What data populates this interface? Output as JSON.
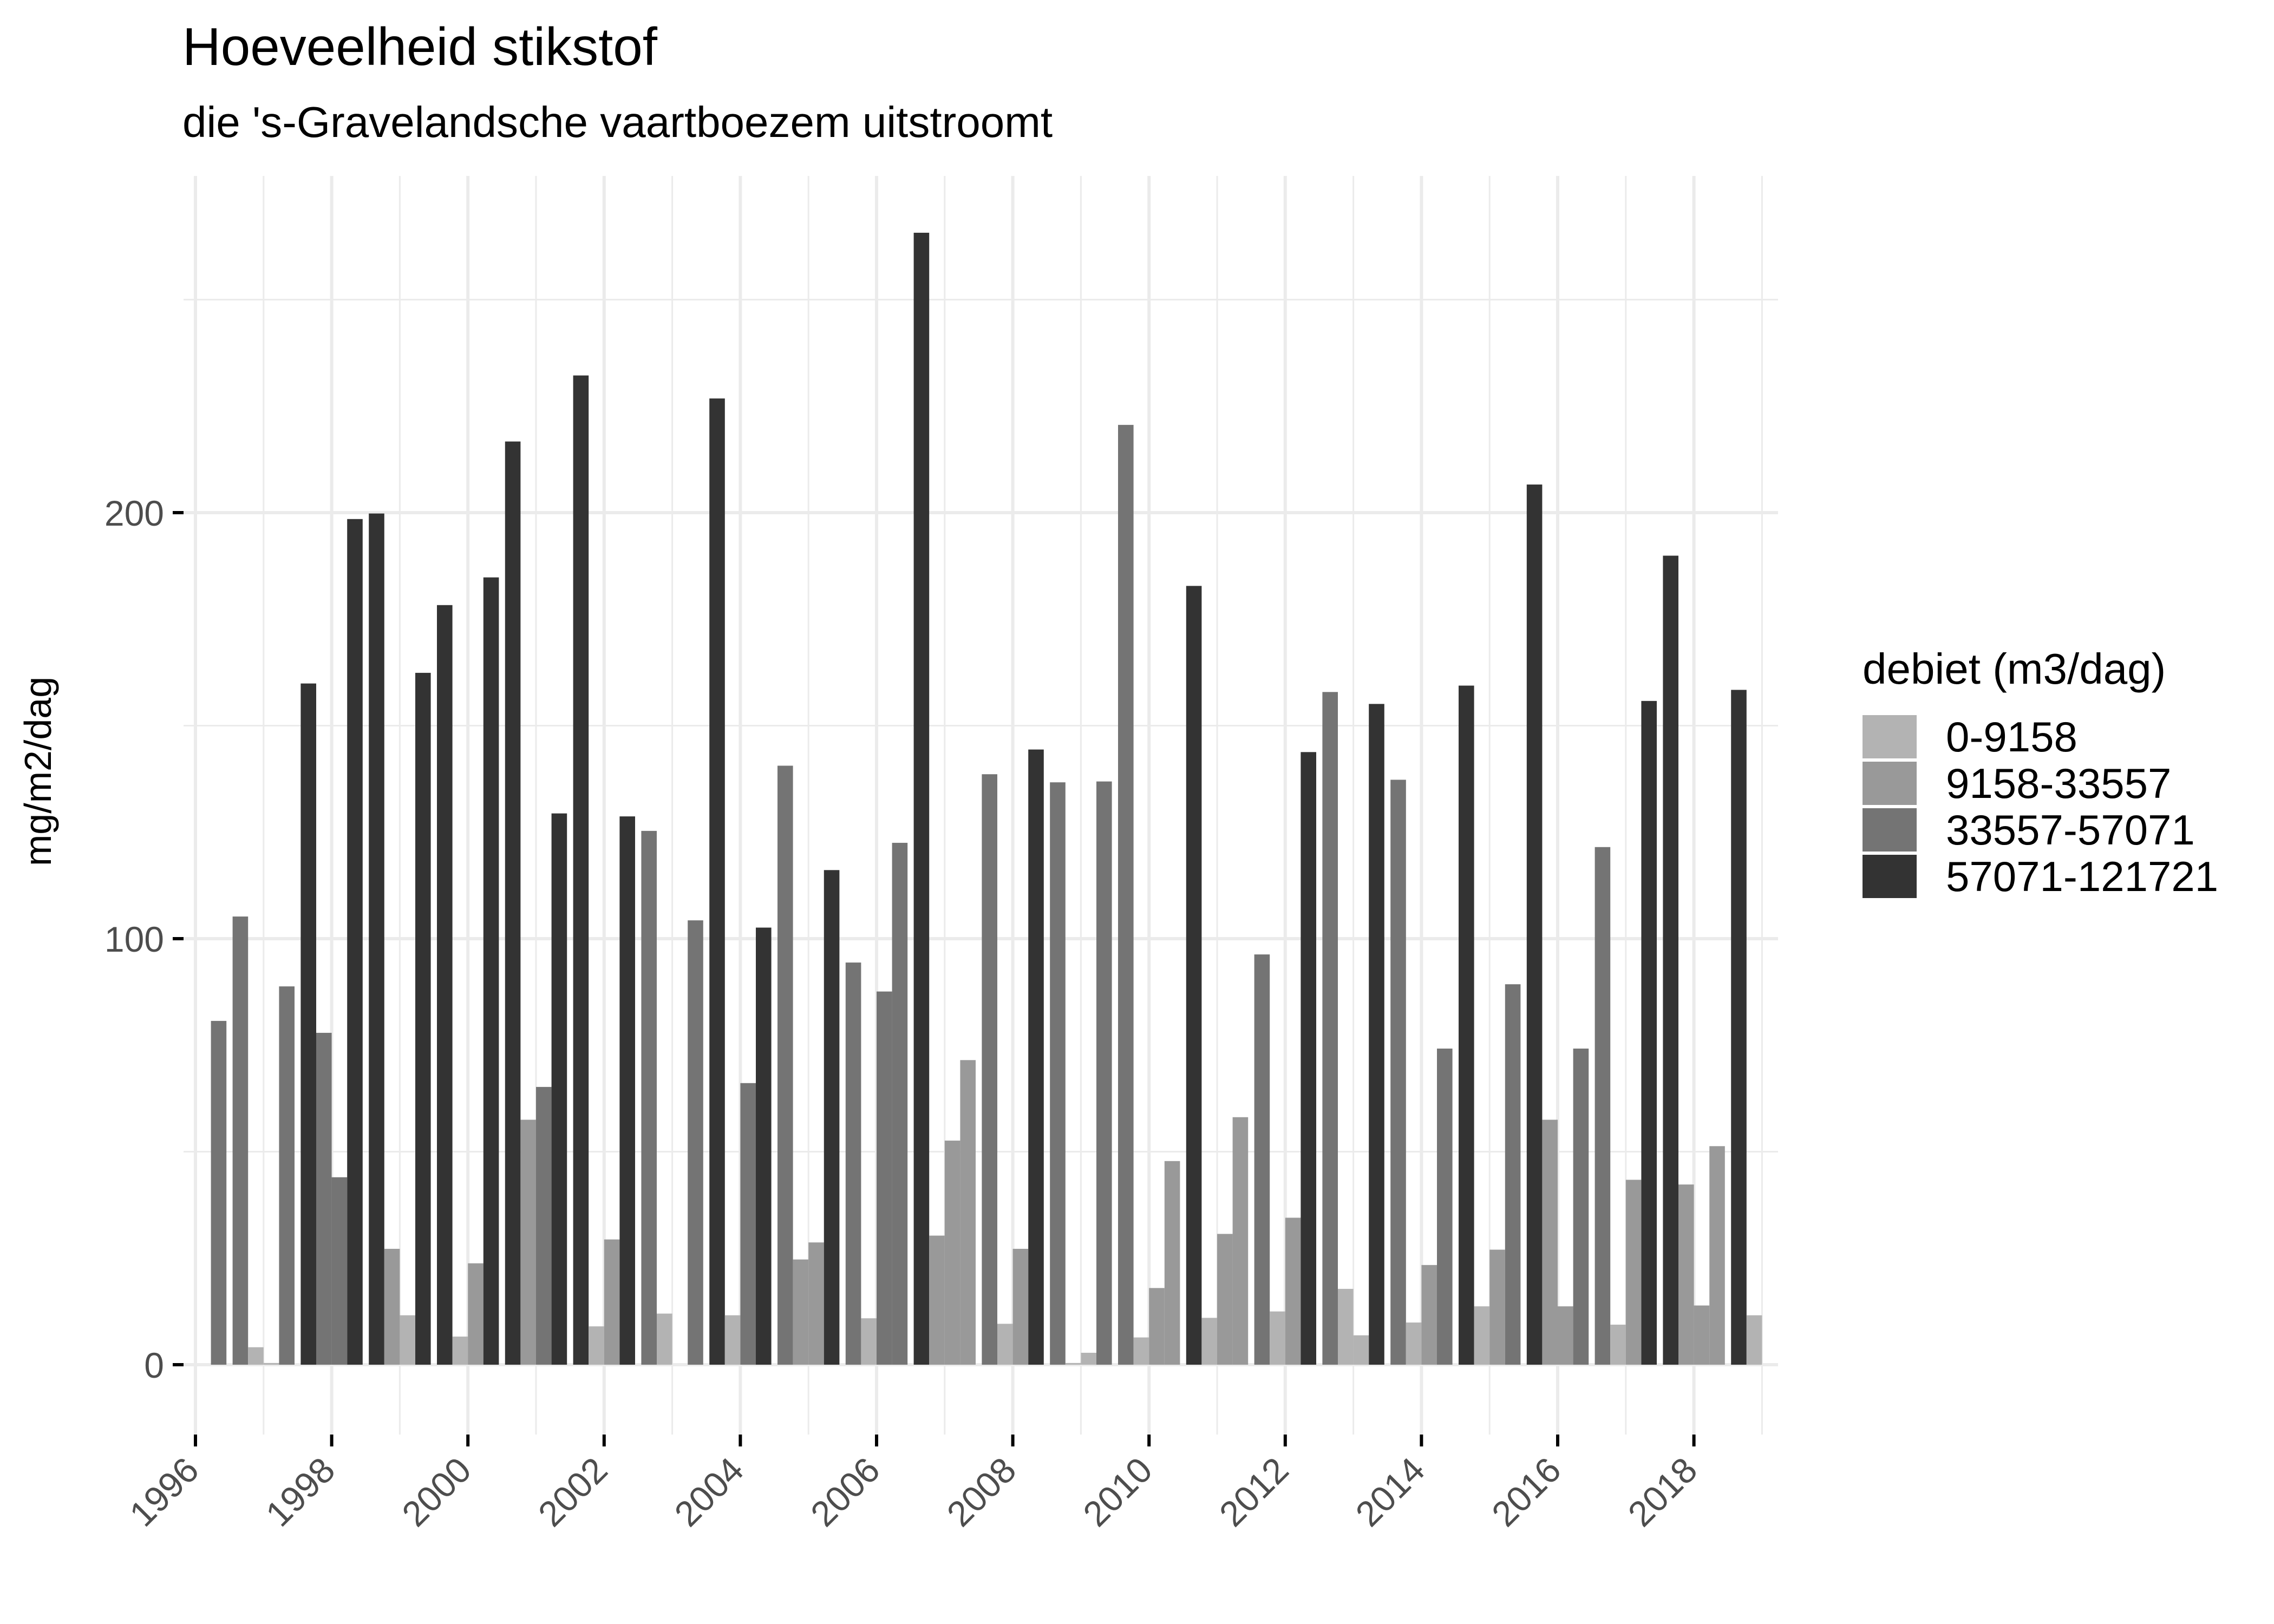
{
  "title": "Hoeveelheid stikstof",
  "subtitle": "die 's-Gravelandsche vaartboezem uitstroomt",
  "legend": {
    "title": "debiet (m3/dag)",
    "items": [
      {
        "label": "0-9158",
        "color": "#B3B3B3"
      },
      {
        "label": "9158-33557",
        "color": "#999999"
      },
      {
        "label": "33557-57071",
        "color": "#747474"
      },
      {
        "label": "57071-121721",
        "color": "#333333"
      }
    ]
  },
  "chart_data": {
    "type": "bar",
    "title": "Hoeveelheid stikstof",
    "subtitle": "die 's-Gravelandsche vaartboezem uitstroomt",
    "xlabel": "",
    "ylabel": "mg/m2/dag",
    "ylim": [
      0,
      270
    ],
    "yticks": [
      0,
      100,
      200
    ],
    "ygrid_minor": [
      50,
      150,
      250
    ],
    "xticks": [
      "1996",
      "1998",
      "2000",
      "2002",
      "2004",
      "2006",
      "2008",
      "2010",
      "2012",
      "2014",
      "2016",
      "2018"
    ],
    "xlim": [
      1995.8,
      2019.2
    ],
    "grid": true,
    "legend_position": "right",
    "legend_title": "debiet (m3/dag)",
    "note": "Per year, four dodged bars (quarters) centred on 1 January; each bar is filled by discharge class.",
    "classes": [
      "0-9158",
      "9158-33557",
      "33557-57071",
      "57071-121721"
    ],
    "groups": [
      {
        "year": 1996,
        "bars": [
          null,
          null,
          null,
          {
            "value": 80.7,
            "class": "33557-57071"
          }
        ]
      },
      {
        "year": 1997,
        "bars": [
          {
            "value": 105.2,
            "class": "33557-57071"
          },
          {
            "value": 4.1,
            "class": "0-9158"
          },
          {
            "value": 0.4,
            "class": "0-9158"
          },
          {
            "value": 88.8,
            "class": "33557-57071"
          }
        ]
      },
      {
        "year": 1998,
        "bars": [
          {
            "value": 159.9,
            "class": "57071-121721"
          },
          {
            "value": 77.9,
            "class": "33557-57071"
          },
          {
            "value": 44.0,
            "class": "33557-57071"
          },
          {
            "value": 198.5,
            "class": "57071-121721"
          }
        ]
      },
      {
        "year": 1999,
        "bars": [
          {
            "value": 199.8,
            "class": "57071-121721"
          },
          {
            "value": 27.2,
            "class": "9158-33557"
          },
          {
            "value": 11.6,
            "class": "0-9158"
          },
          {
            "value": 162.4,
            "class": "57071-121721"
          }
        ]
      },
      {
        "year": 2000,
        "bars": [
          {
            "value": 178.3,
            "class": "57071-121721"
          },
          {
            "value": 6.6,
            "class": "0-9158"
          },
          {
            "value": 23.8,
            "class": "9158-33557"
          },
          {
            "value": 184.8,
            "class": "57071-121721"
          }
        ]
      },
      {
        "year": 2001,
        "bars": [
          {
            "value": 216.7,
            "class": "57071-121721"
          },
          {
            "value": 57.5,
            "class": "9158-33557"
          },
          {
            "value": 65.2,
            "class": "33557-57071"
          },
          {
            "value": 129.4,
            "class": "57071-121721"
          }
        ]
      },
      {
        "year": 2002,
        "bars": [
          {
            "value": 232.2,
            "class": "57071-121721"
          },
          {
            "value": 9.0,
            "class": "0-9158"
          },
          {
            "value": 29.4,
            "class": "9158-33557"
          },
          {
            "value": 128.7,
            "class": "57071-121721"
          }
        ]
      },
      {
        "year": 2003,
        "bars": [
          {
            "value": 125.3,
            "class": "33557-57071"
          },
          {
            "value": 12.0,
            "class": "0-9158"
          },
          null,
          {
            "value": 104.3,
            "class": "33557-57071"
          }
        ]
      },
      {
        "year": 2004,
        "bars": [
          {
            "value": 226.8,
            "class": "57071-121721"
          },
          {
            "value": 11.6,
            "class": "0-9158"
          },
          {
            "value": 66.1,
            "class": "33557-57071"
          },
          {
            "value": 102.6,
            "class": "57071-121721"
          }
        ]
      },
      {
        "year": 2005,
        "bars": [
          {
            "value": 140.6,
            "class": "33557-57071"
          },
          {
            "value": 24.7,
            "class": "9158-33557"
          },
          {
            "value": 28.7,
            "class": "9158-33557"
          },
          {
            "value": 116.1,
            "class": "57071-121721"
          }
        ]
      },
      {
        "year": 2006,
        "bars": [
          {
            "value": 94.4,
            "class": "33557-57071"
          },
          {
            "value": 10.9,
            "class": "0-9158"
          },
          {
            "value": 87.6,
            "class": "33557-57071"
          },
          {
            "value": 122.5,
            "class": "33557-57071"
          }
        ]
      },
      {
        "year": 2007,
        "bars": [
          {
            "value": 265.7,
            "class": "57071-121721"
          },
          {
            "value": 30.3,
            "class": "9158-33557"
          },
          {
            "value": 52.6,
            "class": "9158-33557"
          },
          {
            "value": 71.5,
            "class": "9158-33557"
          }
        ]
      },
      {
        "year": 2008,
        "bars": [
          {
            "value": 138.6,
            "class": "33557-57071"
          },
          {
            "value": 9.6,
            "class": "0-9158"
          },
          {
            "value": 27.2,
            "class": "9158-33557"
          },
          {
            "value": 144.4,
            "class": "57071-121721"
          }
        ]
      },
      {
        "year": 2009,
        "bars": [
          {
            "value": 136.7,
            "class": "33557-57071"
          },
          {
            "value": 0.4,
            "class": "0-9158"
          },
          {
            "value": 2.8,
            "class": "0-9158"
          },
          {
            "value": 136.9,
            "class": "33557-57071"
          }
        ]
      },
      {
        "year": 2010,
        "bars": [
          {
            "value": 220.6,
            "class": "33557-57071"
          },
          {
            "value": 6.4,
            "class": "0-9158"
          },
          {
            "value": 18.0,
            "class": "9158-33557"
          },
          {
            "value": 47.8,
            "class": "9158-33557"
          }
        ]
      },
      {
        "year": 2011,
        "bars": [
          {
            "value": 182.8,
            "class": "57071-121721"
          },
          {
            "value": 11.0,
            "class": "0-9158"
          },
          {
            "value": 30.7,
            "class": "9158-33557"
          },
          {
            "value": 58.1,
            "class": "9158-33557"
          }
        ]
      },
      {
        "year": 2012,
        "bars": [
          {
            "value": 96.3,
            "class": "33557-57071"
          },
          {
            "value": 12.5,
            "class": "0-9158"
          },
          {
            "value": 34.5,
            "class": "9158-33557"
          },
          {
            "value": 143.8,
            "class": "57071-121721"
          }
        ]
      },
      {
        "year": 2013,
        "bars": [
          {
            "value": 157.9,
            "class": "33557-57071"
          },
          {
            "value": 17.8,
            "class": "0-9158"
          },
          {
            "value": 6.9,
            "class": "0-9158"
          },
          {
            "value": 155.1,
            "class": "57071-121721"
          }
        ]
      },
      {
        "year": 2014,
        "bars": [
          {
            "value": 137.3,
            "class": "33557-57071"
          },
          {
            "value": 9.9,
            "class": "0-9158"
          },
          {
            "value": 23.4,
            "class": "9158-33557"
          },
          {
            "value": 74.2,
            "class": "33557-57071"
          }
        ]
      },
      {
        "year": 2015,
        "bars": [
          {
            "value": 159.4,
            "class": "57071-121721"
          },
          {
            "value": 13.7,
            "class": "0-9158"
          },
          {
            "value": 27.0,
            "class": "9158-33557"
          },
          {
            "value": 89.3,
            "class": "33557-57071"
          }
        ]
      },
      {
        "year": 2016,
        "bars": [
          {
            "value": 206.6,
            "class": "57071-121721"
          },
          {
            "value": 57.5,
            "class": "9158-33557"
          },
          {
            "value": 13.7,
            "class": "9158-33557"
          },
          {
            "value": 74.2,
            "class": "33557-57071"
          }
        ]
      },
      {
        "year": 2017,
        "bars": [
          {
            "value": 121.5,
            "class": "33557-57071"
          },
          {
            "value": 9.4,
            "class": "0-9158"
          },
          {
            "value": 43.4,
            "class": "9158-33557"
          },
          {
            "value": 155.8,
            "class": "57071-121721"
          }
        ]
      },
      {
        "year": 2018,
        "bars": [
          {
            "value": 189.9,
            "class": "57071-121721"
          },
          {
            "value": 42.3,
            "class": "9158-33557"
          },
          {
            "value": 13.9,
            "class": "9158-33557"
          },
          {
            "value": 51.3,
            "class": "9158-33557"
          }
        ]
      },
      {
        "year": 2019,
        "bars": [
          {
            "value": 158.4,
            "class": "57071-121721"
          },
          {
            "value": 11.6,
            "class": "0-9158"
          },
          null,
          null
        ]
      }
    ]
  }
}
